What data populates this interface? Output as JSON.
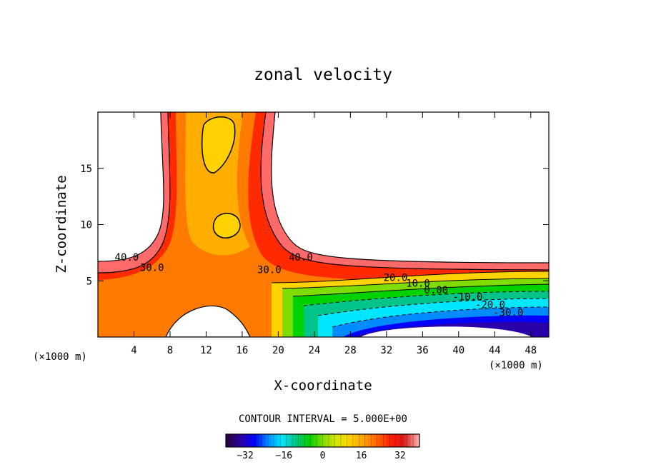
{
  "chart_data": {
    "type": "contour",
    "title": "zonal velocity",
    "xlabel": "X-coordinate",
    "ylabel": "Z-coordinate",
    "x_unit_label_left": "(×1000 m)",
    "x_unit_label_right": "(×1000 m)",
    "xlim": [
      0,
      50
    ],
    "ylim": [
      0,
      20
    ],
    "x_ticks": [
      4,
      8,
      12,
      16,
      20,
      24,
      28,
      32,
      36,
      40,
      44,
      48
    ],
    "y_ticks": [
      5,
      10,
      15
    ],
    "contour_interval_text": "CONTOUR INTERVAL = 5.000E+00",
    "contour_labels": [
      {
        "text": "40.0",
        "x": 3.2,
        "z": 7.1
      },
      {
        "text": "30.0",
        "x": 6.0,
        "z": 6.2
      },
      {
        "text": "30.0",
        "x": 19.0,
        "z": 6.0
      },
      {
        "text": "40.0",
        "x": 22.5,
        "z": 7.1
      },
      {
        "text": "20.0",
        "x": 33.0,
        "z": 5.3
      },
      {
        "text": "10.0",
        "x": 35.5,
        "z": 4.8
      },
      {
        "text": "0.00",
        "x": 37.5,
        "z": 4.2
      },
      {
        "text": "-10.0",
        "x": 41.0,
        "z": 3.6
      },
      {
        "text": "-20.0",
        "x": 43.5,
        "z": 2.9
      },
      {
        "text": "-30.0",
        "x": 45.5,
        "z": 2.2
      }
    ],
    "colorbar": {
      "min": -40,
      "max": 40,
      "ticks": [
        -32,
        -16,
        0,
        16,
        32
      ],
      "colormap": [
        "#2b0044",
        "#2a00a8",
        "#0000ff",
        "#008cff",
        "#00e6ff",
        "#00c48a",
        "#00d200",
        "#7fdc00",
        "#d7e600",
        "#ffd200",
        "#ffa000",
        "#ff6400",
        "#ff1e00",
        "#d81e1e",
        "#ffa8a8"
      ]
    }
  }
}
